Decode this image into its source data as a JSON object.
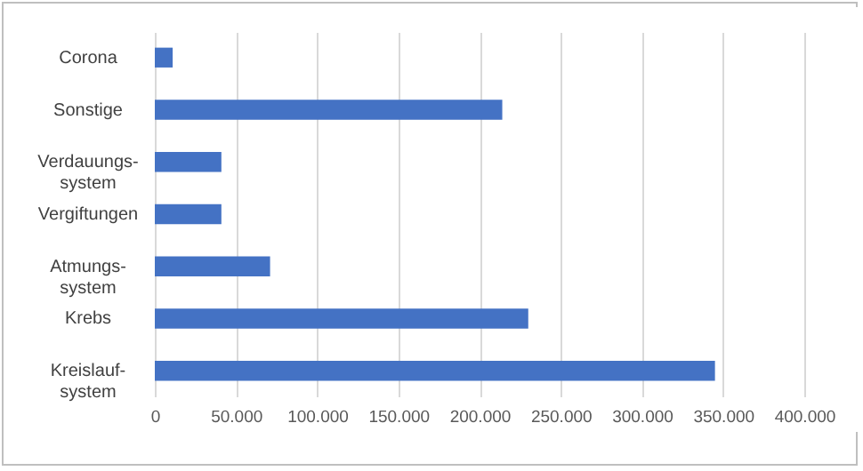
{
  "chart_data": {
    "type": "bar",
    "orientation": "horizontal",
    "categories": [
      "Corona",
      "Sonstige",
      "Verdauungs-system",
      "Vergiftungen",
      "Atmungs-system",
      "Krebs",
      "Kreislauf-system"
    ],
    "values": [
      11000,
      214000,
      41000,
      41000,
      71000,
      230000,
      345000
    ],
    "color": "#4472c4",
    "xlim": [
      0,
      400000
    ],
    "xticks": [
      0,
      {
        "value": 50000,
        "label": "50.000"
      },
      {
        "value": 100000,
        "label": "100.000"
      },
      {
        "value": 150000,
        "label": "150.000"
      },
      {
        "value": 200000,
        "label": "200.000"
      },
      {
        "value": 250000,
        "label": "250.000"
      },
      {
        "value": 300000,
        "label": "300.000"
      },
      {
        "value": 350000,
        "label": "350.000"
      },
      {
        "value": 400000,
        "label": "400.000"
      }
    ],
    "grid": "x"
  }
}
